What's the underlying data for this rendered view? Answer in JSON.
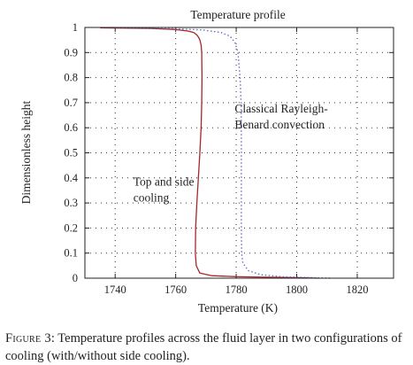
{
  "chart_data": {
    "type": "line",
    "title": "Temperature profile",
    "xlabel": "Temperature (K)",
    "ylabel": "Dimensionless height",
    "xlim": [
      1730,
      1832
    ],
    "ylim": [
      0,
      1
    ],
    "xticks": [
      1740,
      1760,
      1780,
      1800,
      1820
    ],
    "yticks": [
      0,
      0.1,
      0.2,
      0.3,
      0.4,
      0.5,
      0.6,
      0.7,
      0.8,
      0.9,
      1
    ],
    "grid": true,
    "series": [
      {
        "name": "Top and side cooling",
        "color": "#a3282a",
        "style": "solid",
        "x": [
          1807,
          1800,
          1790,
          1780,
          1772,
          1768,
          1766.8,
          1766.5,
          1766.6,
          1767,
          1767.5,
          1768,
          1768.4,
          1768.6,
          1768.7,
          1768.6,
          1768.4,
          1768,
          1767.6,
          1767,
          1766,
          1764,
          1760,
          1752,
          1740,
          1735
        ],
        "y": [
          0.0,
          0.002,
          0.004,
          0.006,
          0.01,
          0.02,
          0.05,
          0.1,
          0.2,
          0.3,
          0.4,
          0.5,
          0.6,
          0.7,
          0.8,
          0.9,
          0.93,
          0.95,
          0.96,
          0.97,
          0.98,
          0.986,
          0.992,
          0.996,
          0.998,
          0.999
        ]
      },
      {
        "name": "Classical Rayleigh-Benard convection",
        "color": "#6b6fc0",
        "style": "dotted",
        "x": [
          1811,
          1805,
          1795,
          1788,
          1784,
          1782.2,
          1781.8,
          1781.7,
          1781.7,
          1781.7,
          1781.7,
          1781.7,
          1781.6,
          1781.3,
          1780.6,
          1779.6,
          1778,
          1775,
          1769,
          1760,
          1748,
          1738
        ],
        "y": [
          0.0,
          0.002,
          0.006,
          0.014,
          0.03,
          0.06,
          0.1,
          0.2,
          0.3,
          0.4,
          0.5,
          0.6,
          0.7,
          0.8,
          0.9,
          0.94,
          0.965,
          0.98,
          0.99,
          0.995,
          0.998,
          1.0
        ]
      }
    ],
    "annotations": [
      {
        "lines": [
          "Classical Rayleigh-",
          "Benard convection"
        ],
        "x": 1779.5,
        "y": 0.66
      },
      {
        "lines": [
          "Top and side",
          "cooling"
        ],
        "x": 1746,
        "y": 0.37
      }
    ]
  },
  "caption": {
    "label": "Figure 3",
    "text": ": Temperature profiles across the fluid layer in two configurations of cooling (with/without side cooling)."
  }
}
